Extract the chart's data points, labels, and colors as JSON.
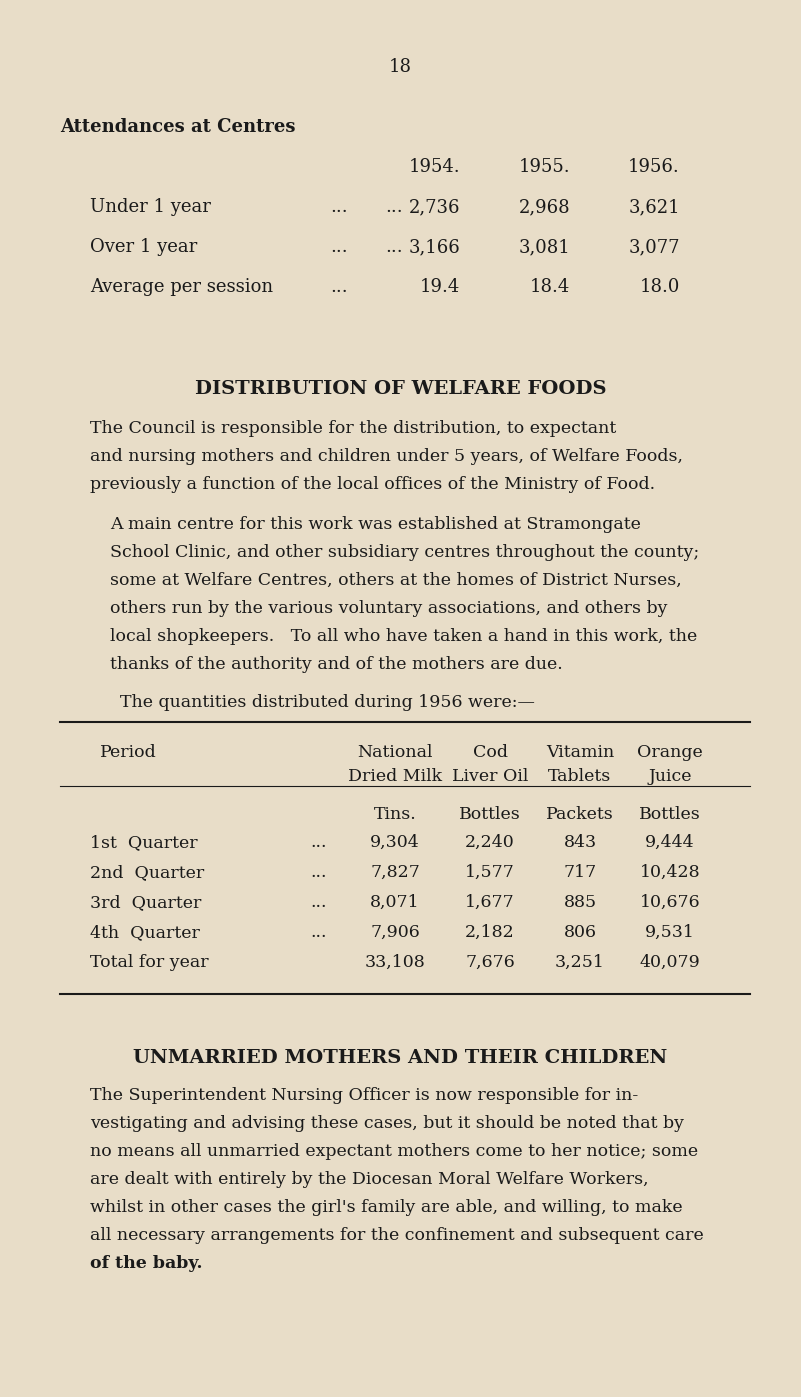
{
  "bg_color": "#e8ddc8",
  "text_color": "#1a1a1a",
  "page_number": "18",
  "section1_title": "Attendances at Centres",
  "section2_title": "DISTRIBUTION OF WELFARE FOODS",
  "section2_intro": "The quantities distributed during 1956 were:—",
  "section3_title": "UNMARRIED MOTHERS AND THEIR CHILDREN",
  "para1_lines": [
    "The Council is responsible for the distribution, to expectant",
    "and nursing mothers and children under 5 years, of Welfare Foods,",
    "previously a function of the local offices of the Ministry of Food."
  ],
  "para2_lines": [
    "A main centre for this work was established at Stramongate",
    "School Clinic, and other subsidiary centres throughout the county;",
    "some at Welfare Centres, others at the homes of District Nurses,",
    "others run by the various voluntary associations, and others by",
    "local shopkeepers.   To all who have taken a hand in this work, the",
    "thanks of the authority and of the mothers are due."
  ],
  "para3_lines": [
    "The Superintendent Nursing Officer is now responsible for in-",
    "vestigating and advising these cases, but it should be noted that by",
    "no means all unmarried expectant mothers come to her notice; some",
    "are dealt with entirely by the Diocesan Moral Welfare Workers,",
    "whilst in other cases the girl's family are able, and willing, to make",
    "all necessary arrangements for the confinement and subsequent care",
    "of the baby."
  ],
  "para3_bold_end": "of the baby.",
  "year_headers": [
    "1954.",
    "1955.",
    "1956."
  ],
  "attend_rows": [
    [
      "Under 1 year",
      "...",
      "...",
      "2,736",
      "2,968",
      "3,621"
    ],
    [
      "Over 1 year",
      "...",
      "...",
      "3,166",
      "3,081",
      "3,077"
    ],
    [
      "Average per session",
      "...",
      "19.4",
      "18.4",
      "18.0"
    ]
  ],
  "table_header1": [
    "Period",
    "National",
    "Cod",
    "Vitamin",
    "Orange"
  ],
  "table_header2": [
    "",
    "Dried Milk",
    "Liver Oil",
    "Tablets",
    "Juice"
  ],
  "table_units": [
    "",
    "Tins.",
    "Bottles",
    "Packets",
    "Bottles"
  ],
  "table_rows": [
    [
      "1st  Quarter",
      "...",
      "9,304",
      "2,240",
      "843",
      "9,444"
    ],
    [
      "2nd  Quarter",
      "...",
      "7,827",
      "1,577",
      "717",
      "10,428"
    ],
    [
      "3rd  Quarter",
      "...",
      "8,071",
      "1,677",
      "885",
      "10,676"
    ],
    [
      "4th  Quarter",
      "...",
      "7,906",
      "2,182",
      "806",
      "9,531"
    ],
    [
      "Total for year",
      "",
      "33,108",
      "7,676",
      "3,251",
      "40,079"
    ]
  ]
}
